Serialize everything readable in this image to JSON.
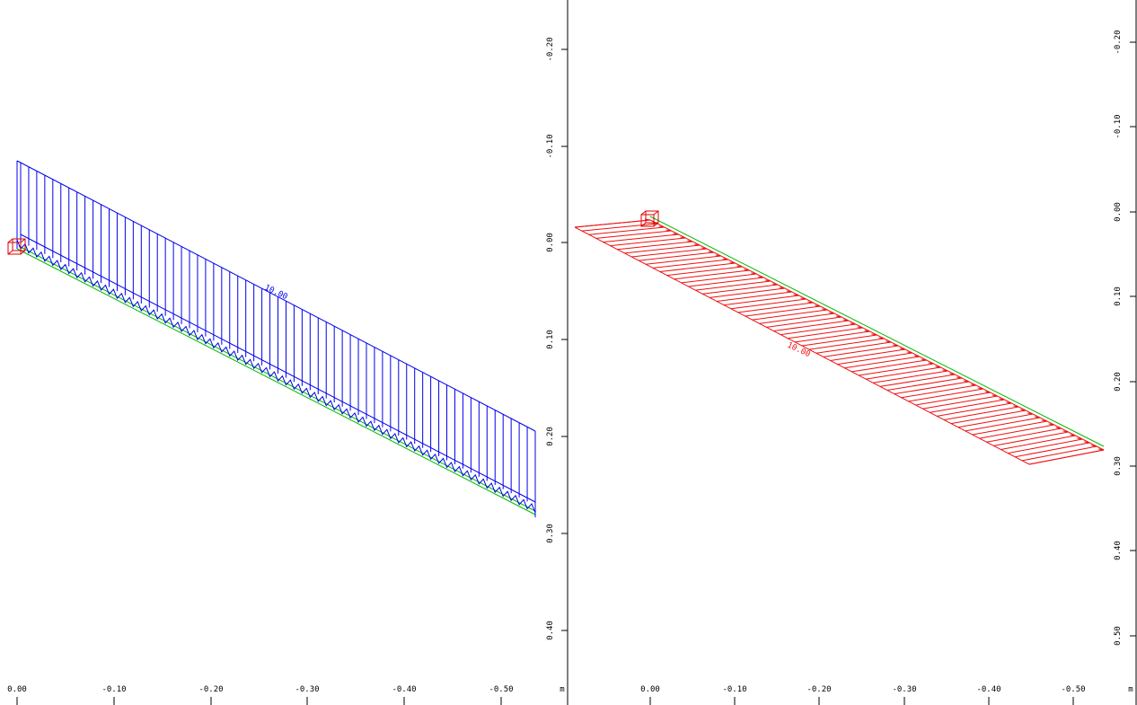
{
  "unit_label": "m",
  "colors": {
    "load_blue": "#0000ee",
    "load_red": "#ee1111",
    "member_green": "#00bb00",
    "support_red": "#dd0000",
    "axis": "#000000"
  },
  "views": [
    {
      "id": "left",
      "load_label": "10.00",
      "x_ticks": [
        "0.00",
        "-0.10",
        "-0.20",
        "-0.30",
        "-0.40",
        "-0.50"
      ],
      "y_ticks": [
        "-0.20",
        "-0.10",
        "0.00",
        "0.10",
        "0.20",
        "0.30",
        "0.40"
      ]
    },
    {
      "id": "right",
      "load_label": "10.00",
      "x_ticks": [
        "0.00",
        "-0.10",
        "-0.20",
        "-0.30",
        "-0.40",
        "-0.50"
      ],
      "y_ticks": [
        "-0.20",
        "-0.10",
        "0.00",
        "0.10",
        "0.20",
        "0.30",
        "0.40",
        "0.50"
      ]
    }
  ]
}
